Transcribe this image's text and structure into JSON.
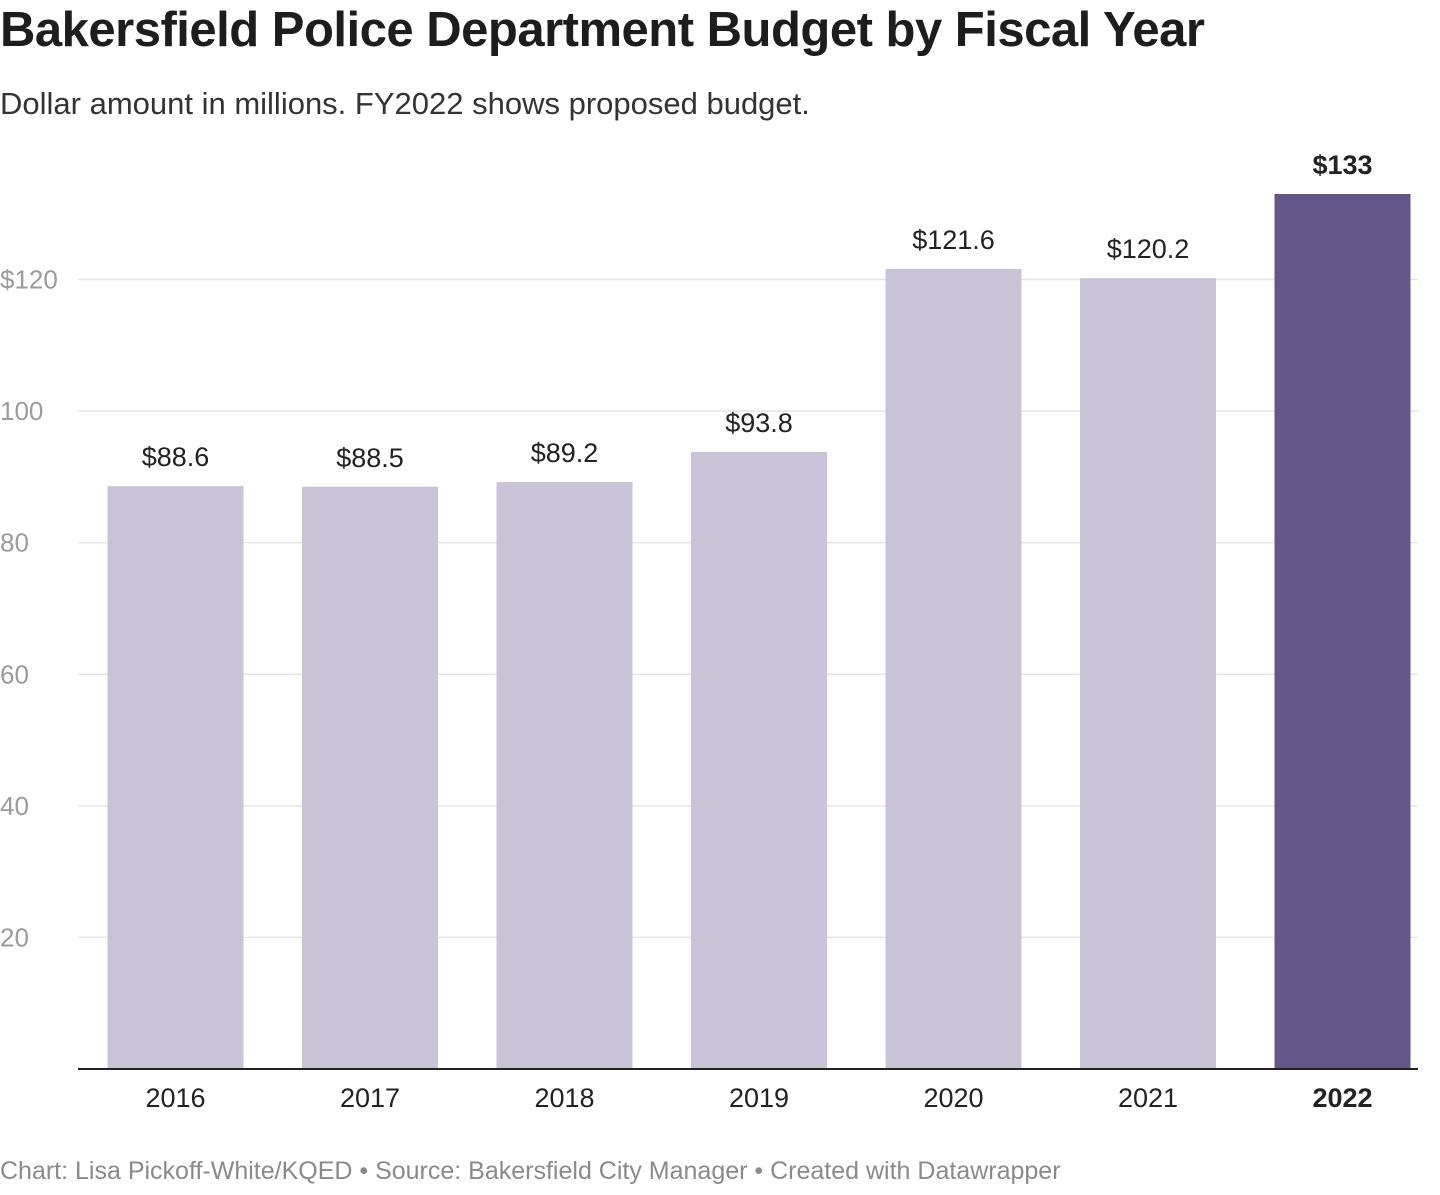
{
  "header": {
    "title": "Bakersfield Police Department Budget by Fiscal Year",
    "subtitle": "Dollar amount in millions. FY2022 shows proposed budget."
  },
  "footer": {
    "credit": "Chart: Lisa Pickoff-White/KQED • Source: Bakersfield City Manager • Created with Datawrapper"
  },
  "chart_data": {
    "type": "bar",
    "title": "Bakersfield Police Department Budget by Fiscal Year",
    "subtitle": "Dollar amount in millions. FY2022 shows proposed budget.",
    "xlabel": "",
    "ylabel": "",
    "categories": [
      "2016",
      "2017",
      "2018",
      "2019",
      "2020",
      "2021",
      "2022"
    ],
    "values": [
      88.6,
      88.5,
      89.2,
      93.8,
      121.6,
      120.2,
      133
    ],
    "value_labels": [
      "$88.6",
      "$88.5",
      "$89.2",
      "$93.8",
      "$121.6",
      "$120.2",
      "$133"
    ],
    "highlight": "2022",
    "ylim": [
      0,
      133
    ],
    "yticks": [
      20,
      40,
      60,
      80,
      100,
      120
    ],
    "ytick_labels": [
      "20",
      "40",
      "60",
      "80",
      "100",
      "$120"
    ],
    "grid": true,
    "colors": {
      "bar": "#c8c3d6",
      "highlight": "#645689",
      "grid": "#e4e4e4",
      "axis": "#222222",
      "tick_text": "#9b9b9b"
    }
  }
}
